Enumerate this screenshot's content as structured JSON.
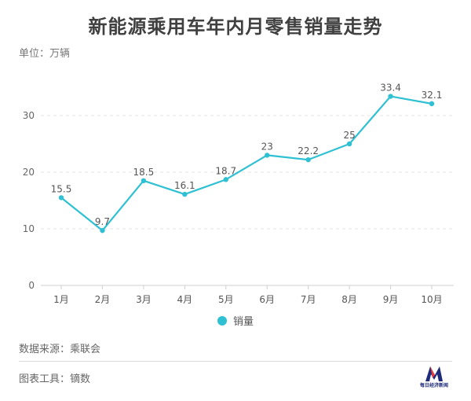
{
  "header": {
    "title": "新能源乘用车年内月零售销量走势",
    "unit": "单位：万辆"
  },
  "footer": {
    "source": "数据来源：乘联会",
    "tool": "图表工具：镝数",
    "logo_text": "每日经济新闻"
  },
  "colors": {
    "line": "#2fc1d3",
    "grid": "#e3e3e3"
  },
  "chart_data": {
    "type": "line",
    "categories": [
      "1月",
      "2月",
      "3月",
      "4月",
      "5月",
      "6月",
      "7月",
      "8月",
      "9月",
      "10月"
    ],
    "series": [
      {
        "name": "销量",
        "values": [
          15.5,
          9.7,
          18.5,
          16.1,
          18.7,
          23,
          22.2,
          25,
          33.4,
          32.1
        ]
      }
    ],
    "yticks": [
      0,
      10,
      20,
      30
    ],
    "ylim": [
      0,
      40
    ],
    "grid": true,
    "legend": "bottom-center"
  }
}
